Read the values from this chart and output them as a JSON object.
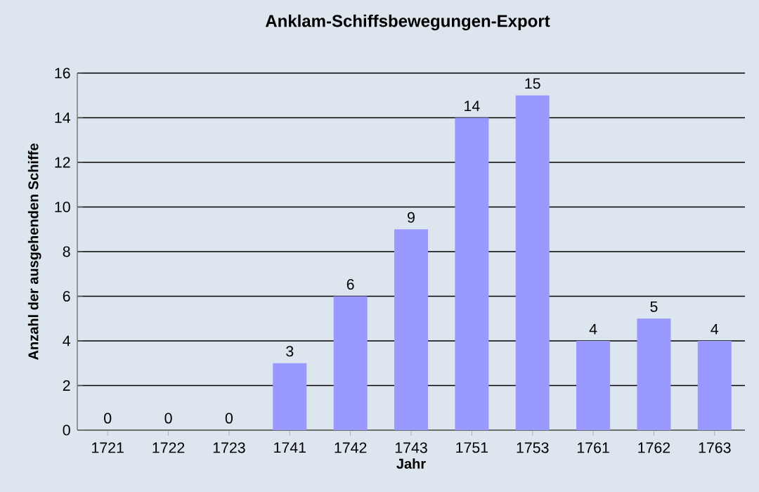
{
  "chart_data": {
    "type": "bar",
    "title": "Anklam-Schiffsbewegungen-Export",
    "xlabel": "Jahr",
    "ylabel": "Anzahl der ausgehenden Schiffe",
    "categories": [
      "1721",
      "1722",
      "1723",
      "1741",
      "1742",
      "1743",
      "1751",
      "1753",
      "1761",
      "1762",
      "1763"
    ],
    "values": [
      0,
      0,
      0,
      3,
      6,
      9,
      14,
      15,
      4,
      5,
      4
    ],
    "color": "#9999ff",
    "ylim": [
      0,
      16
    ],
    "yticks": [
      0,
      2,
      4,
      6,
      8,
      10,
      12,
      14,
      16
    ],
    "grid": "y",
    "data_labels": true
  }
}
